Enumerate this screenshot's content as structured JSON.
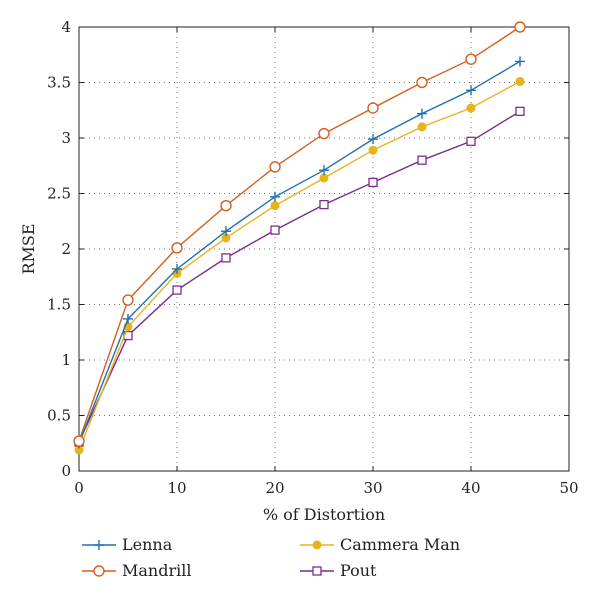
{
  "chart_data": {
    "type": "line",
    "title": "",
    "xlabel": "% of Distortion",
    "ylabel": "RMSE",
    "xlim": [
      0,
      50
    ],
    "ylim": [
      0,
      4
    ],
    "xticks": [
      0,
      10,
      20,
      30,
      40,
      50
    ],
    "yticks": [
      0,
      0.5,
      1,
      1.5,
      2,
      2.5,
      3,
      3.5,
      4
    ],
    "xtick_labels": [
      "0",
      "10",
      "20",
      "30",
      "40",
      "50"
    ],
    "ytick_labels": [
      "0",
      "0.5",
      "1",
      "1.5",
      "2",
      "2.5",
      "3",
      "3.5",
      "4"
    ],
    "grid": "dotted",
    "legend_position": "below",
    "x": [
      0,
      5,
      10,
      15,
      20,
      25,
      30,
      35,
      40,
      45
    ],
    "series": [
      {
        "name": "Lenna",
        "color": "#1f6fb4",
        "marker": "plus",
        "values": [
          0.25,
          1.37,
          1.82,
          2.16,
          2.47,
          2.71,
          2.99,
          3.22,
          3.43,
          3.69
        ]
      },
      {
        "name": "Mandrill",
        "color": "#d35f1d",
        "marker": "circle-open",
        "values": [
          0.27,
          1.54,
          2.01,
          2.39,
          2.74,
          3.04,
          3.27,
          3.5,
          3.71,
          4.0
        ]
      },
      {
        "name": "Cammera Man",
        "color": "#e8b21a",
        "marker": "circle-filled",
        "values": [
          0.19,
          1.3,
          1.78,
          2.1,
          2.39,
          2.64,
          2.89,
          3.1,
          3.27,
          3.51
        ]
      },
      {
        "name": "Pout",
        "color": "#7b2d8e",
        "marker": "square-open",
        "values": [
          0.26,
          1.22,
          1.63,
          1.92,
          2.17,
          2.4,
          2.6,
          2.8,
          2.97,
          3.24
        ]
      }
    ]
  }
}
